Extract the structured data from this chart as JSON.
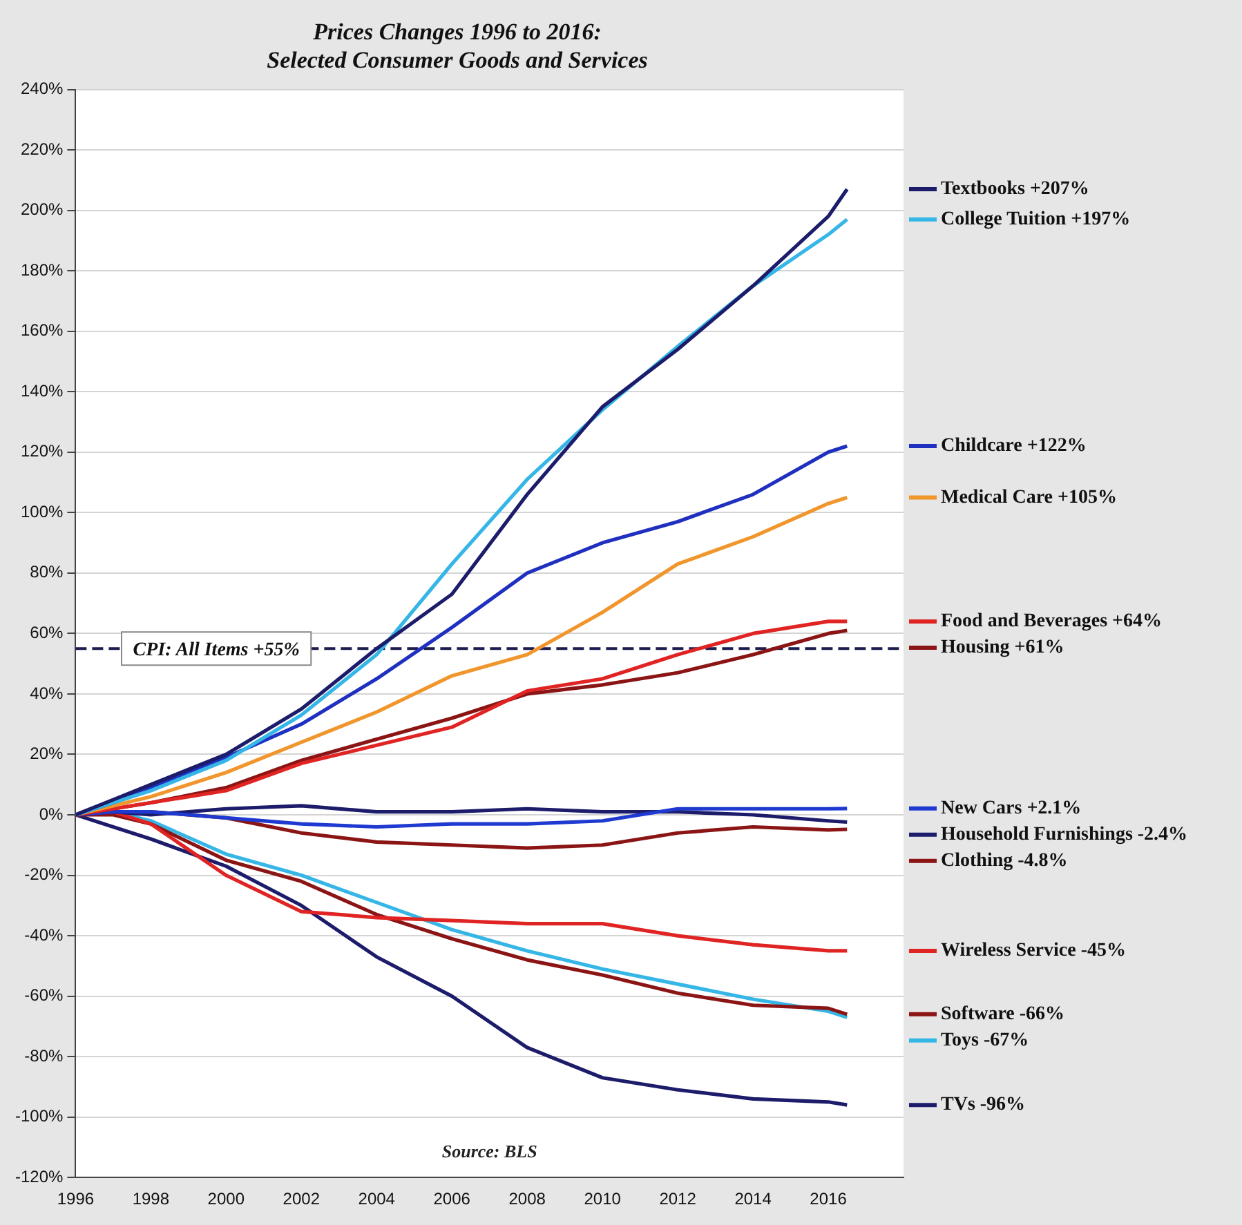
{
  "chart_data": {
    "type": "line",
    "title": "Prices Changes 1996 to 2016:\nSelected Consumer Goods and Services",
    "x": [
      1996,
      1997,
      1998,
      2000,
      2002,
      2004,
      2006,
      2008,
      2010,
      2012,
      2014,
      2016,
      2016.5
    ],
    "xlim": [
      1996,
      2018
    ],
    "xticks": [
      1996,
      1998,
      2000,
      2002,
      2004,
      2006,
      2008,
      2010,
      2012,
      2014,
      2016
    ],
    "ylim": [
      -120,
      240
    ],
    "yticks": [
      {
        "value": -120,
        "label": "-120%"
      },
      {
        "value": -100,
        "label": "-100%"
      },
      {
        "value": -80,
        "label": "-80%"
      },
      {
        "value": -60,
        "label": "-60%"
      },
      {
        "value": -40,
        "label": "-40%"
      },
      {
        "value": -20,
        "label": "-20%"
      },
      {
        "value": 0,
        "label": "0%"
      },
      {
        "value": 20,
        "label": "20%"
      },
      {
        "value": 40,
        "label": "40%"
      },
      {
        "value": 60,
        "label": "60%"
      },
      {
        "value": 80,
        "label": "80%"
      },
      {
        "value": 100,
        "label": "100%"
      },
      {
        "value": 120,
        "label": "120%"
      },
      {
        "value": 140,
        "label": "140%"
      },
      {
        "value": 160,
        "label": "160%"
      },
      {
        "value": 180,
        "label": "180%"
      },
      {
        "value": 200,
        "label": "200%"
      },
      {
        "value": 220,
        "label": "220%"
      },
      {
        "value": 240,
        "label": "240%"
      }
    ],
    "grid": "y",
    "legend": "right",
    "marker": "none",
    "line_style": "solid",
    "series": [
      {
        "name": "Textbooks +207%",
        "color": "#1c1c6b",
        "values": [
          0,
          5,
          10,
          20,
          35,
          55,
          73,
          106,
          135,
          154,
          175,
          198,
          207
        ]
      },
      {
        "name": "College Tuition +197%",
        "color": "#35b6e6",
        "values": [
          0,
          4,
          8,
          18,
          33,
          53,
          83,
          111,
          134,
          155,
          175,
          192,
          197
        ]
      },
      {
        "name": "Childcare +122%",
        "color": "#1f2fbf",
        "values": [
          0,
          4,
          9,
          19,
          30,
          45,
          62,
          80,
          90,
          97,
          106,
          120,
          122
        ]
      },
      {
        "name": "Medical Care +105%",
        "color": "#f0962d",
        "values": [
          0,
          3,
          6,
          14,
          24,
          34,
          46,
          53,
          67,
          83,
          92,
          103,
          105
        ]
      },
      {
        "name": "Food and Beverages +64%",
        "color": "#e02424",
        "values": [
          0,
          2,
          4,
          8,
          17,
          23,
          29,
          41,
          45,
          53,
          60,
          64,
          64
        ]
      },
      {
        "name": "Housing +61%",
        "color": "#8b1414",
        "values": [
          0,
          2,
          4,
          9,
          18,
          25,
          32,
          40,
          43,
          47,
          53,
          60,
          61
        ]
      },
      {
        "name": "New Cars +2.1%",
        "color": "#1f3ad0",
        "values": [
          0,
          1,
          1,
          -1,
          -3,
          -4,
          -3,
          -3,
          -2,
          2,
          2,
          2,
          2.1
        ]
      },
      {
        "name": "Household Furnishings -2.4%",
        "color": "#1c1c6b",
        "values": [
          0,
          1,
          0,
          2,
          3,
          1,
          1,
          2,
          1,
          1,
          0,
          -2,
          -2.4
        ]
      },
      {
        "name": "Clothing -4.8%",
        "color": "#8b1414",
        "values": [
          0,
          1,
          1,
          -1,
          -6,
          -9,
          -10,
          -11,
          -10,
          -6,
          -4,
          -5,
          -4.8
        ]
      },
      {
        "name": "Wireless Service -45%",
        "color": "#e02424",
        "values": [
          0,
          1,
          -3,
          -20,
          -32,
          -34,
          -35,
          -36,
          -36,
          -40,
          -43,
          -45,
          -45
        ]
      },
      {
        "name": "Software -66%",
        "color": "#8b1414",
        "values": [
          0,
          0,
          -3,
          -15,
          -22,
          -33,
          -41,
          -48,
          -53,
          -59,
          -63,
          -64,
          -66
        ]
      },
      {
        "name": "Toys -67%",
        "color": "#35b6e6",
        "values": [
          0,
          1,
          -2,
          -13,
          -20,
          -29,
          -38,
          -45,
          -51,
          -56,
          -61,
          -65,
          -67
        ]
      },
      {
        "name": "TVs -96%",
        "color": "#1c1c6b",
        "values": [
          0,
          -4,
          -8,
          -17,
          -30,
          -47,
          -60,
          -77,
          -87,
          -91,
          -94,
          -95,
          -96
        ]
      }
    ],
    "ref_lines": [
      {
        "axis": "y",
        "value": 55,
        "label": "CPI: All Items +55%",
        "color": "#1c1c4e",
        "line_style": "dashed"
      }
    ],
    "annotations": [
      "Source: BLS"
    ]
  }
}
